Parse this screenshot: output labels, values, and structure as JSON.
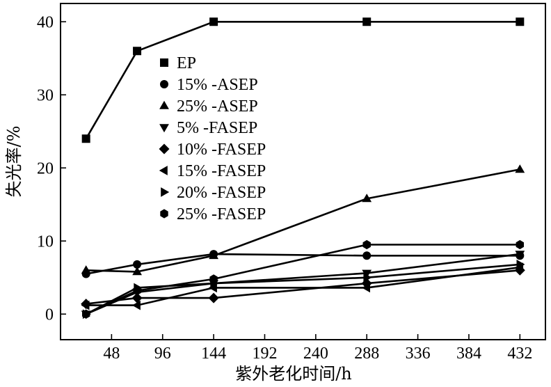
{
  "chart_data": {
    "type": "line",
    "title": "",
    "xlabel": "紫外老化时间/h",
    "ylabel": "失光率/%",
    "xlim": [
      0,
      456
    ],
    "ylim": [
      -3.5,
      42.5
    ],
    "xticks": [
      48,
      96,
      144,
      192,
      240,
      288,
      336,
      384,
      432
    ],
    "yticks": [
      0,
      10,
      20,
      30,
      40
    ],
    "grid": false,
    "legend_position": "upper-left",
    "series": [
      {
        "name": "EP",
        "marker": "square",
        "x": [
          24,
          72,
          144,
          288,
          432
        ],
        "y": [
          24,
          36,
          40,
          40,
          40
        ]
      },
      {
        "name": "15% -ASEP",
        "marker": "circle",
        "x": [
          24,
          72,
          144,
          288,
          432
        ],
        "y": [
          5.5,
          6.8,
          8.2,
          8.0,
          8.0
        ]
      },
      {
        "name": "25% -ASEP",
        "marker": "triangle-up",
        "x": [
          24,
          72,
          144,
          288,
          432
        ],
        "y": [
          6.0,
          5.8,
          8.0,
          15.8,
          19.8
        ]
      },
      {
        "name": "5% -FASEP",
        "marker": "triangle-down",
        "x": [
          24,
          72,
          144,
          288,
          432
        ],
        "y": [
          0,
          3.0,
          4.2,
          5.6,
          8.2
        ]
      },
      {
        "name": "10% -FASEP",
        "marker": "diamond",
        "x": [
          24,
          72,
          144,
          288,
          432
        ],
        "y": [
          1.4,
          2.2,
          2.2,
          4.2,
          6.0
        ]
      },
      {
        "name": "15% -FASEP",
        "marker": "triangle-left",
        "x": [
          24,
          72,
          144,
          288,
          432
        ],
        "y": [
          1.2,
          1.2,
          3.6,
          3.6,
          6.4
        ]
      },
      {
        "name": "20% -FASEP",
        "marker": "triangle-right",
        "x": [
          24,
          72,
          144,
          288,
          432
        ],
        "y": [
          0,
          3.6,
          4.2,
          5.0,
          6.8
        ]
      },
      {
        "name": "25% -FASEP",
        "marker": "hexagon",
        "x": [
          24,
          72,
          144,
          288,
          432
        ],
        "y": [
          0,
          3.2,
          4.8,
          9.5,
          9.5
        ]
      }
    ]
  }
}
